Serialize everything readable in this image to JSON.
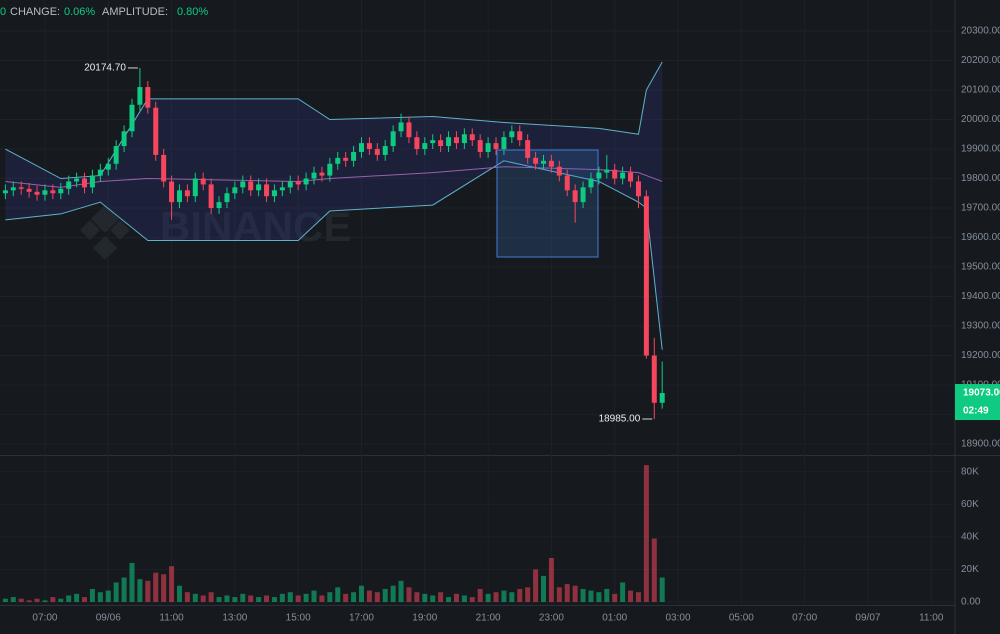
{
  "chart_data": {
    "type": "candlestick",
    "header": {
      "lead": "0",
      "change_label": "CHANGE:",
      "change": "0.06%",
      "amplitude_label": "AMPLITUDE:",
      "amplitude": "0.80%"
    },
    "watermark": "BINANCE",
    "colors": {
      "up": "#0ecb81",
      "down": "#f6465d"
    },
    "x": [
      5.75,
      6,
      6.25,
      6.5,
      6.75,
      7,
      7.25,
      7.5,
      7.75,
      8,
      8.25,
      8.5,
      8.75,
      9,
      9.25,
      9.5,
      9.75,
      10,
      10.25,
      10.5,
      10.75,
      11,
      11.25,
      11.5,
      11.75,
      12,
      12.25,
      12.5,
      12.75,
      13,
      13.25,
      13.5,
      13.75,
      14,
      14.25,
      14.5,
      14.75,
      15,
      15.25,
      15.5,
      15.75,
      16,
      16.25,
      16.5,
      16.75,
      17,
      17.25,
      17.5,
      17.75,
      18,
      18.25,
      18.5,
      18.75,
      19,
      19.25,
      19.5,
      19.75,
      20,
      20.25,
      20.5,
      20.75,
      21,
      21.25,
      21.5,
      21.75,
      22,
      22.25,
      22.5,
      22.75,
      23,
      23.25,
      23.5,
      23.75,
      24,
      24.25,
      24.5,
      24.75,
      25,
      25.25,
      25.5,
      25.75,
      26,
      26.25,
      26.5
    ],
    "open": [
      19750,
      19760,
      19770,
      19765,
      19755,
      19745,
      19760,
      19750,
      19765,
      19790,
      19800,
      19770,
      19810,
      19830,
      19850,
      19910,
      19960,
      20050,
      20110,
      20040,
      19880,
      19790,
      19720,
      19760,
      19740,
      19800,
      19780,
      19700,
      19720,
      19750,
      19770,
      19790,
      19760,
      19780,
      19740,
      19760,
      19770,
      19790,
      19780,
      19800,
      19820,
      19810,
      19850,
      19870,
      19860,
      19890,
      19920,
      19900,
      19880,
      19910,
      19960,
      19990,
      19940,
      19900,
      19920,
      19930,
      19910,
      19940,
      19920,
      19950,
      19930,
      19890,
      19920,
      19900,
      19940,
      19960,
      19930,
      19870,
      19850,
      19860,
      19840,
      19810,
      19760,
      19720,
      19770,
      19800,
      19820,
      19830,
      19800,
      19820,
      19790,
      19740,
      19200,
      19040
    ],
    "high": [
      19780,
      19790,
      19790,
      19785,
      19775,
      19780,
      19780,
      19785,
      19810,
      19820,
      19820,
      19830,
      19850,
      19870,
      19930,
      19980,
      20070,
      20174.7,
      20130,
      20060,
      19900,
      19810,
      19780,
      19780,
      19820,
      19820,
      19800,
      19740,
      19770,
      19790,
      19810,
      19810,
      19800,
      19800,
      19780,
      19790,
      19810,
      19810,
      19820,
      19840,
      19840,
      19870,
      19890,
      19890,
      19910,
      19940,
      19940,
      19920,
      19930,
      19980,
      20020,
      20010,
      19960,
      19940,
      19950,
      19950,
      19960,
      19960,
      19970,
      19970,
      19950,
      19940,
      19940,
      19960,
      19980,
      19980,
      19950,
      19890,
      19880,
      19880,
      19860,
      19830,
      19780,
      19790,
      19820,
      19840,
      19880,
      19850,
      19840,
      19840,
      19810,
      19760,
      19260,
      19180
    ],
    "low": [
      19730,
      19740,
      19745,
      19735,
      19725,
      19725,
      19730,
      19730,
      19745,
      19770,
      19750,
      19750,
      19790,
      19810,
      19830,
      19890,
      19940,
      20030,
      20020,
      19860,
      19770,
      19660,
      19700,
      19720,
      19720,
      19760,
      19680,
      19680,
      19700,
      19730,
      19750,
      19740,
      19740,
      19720,
      19720,
      19740,
      19750,
      19760,
      19760,
      19780,
      19790,
      19790,
      19830,
      19840,
      19840,
      19870,
      19880,
      19860,
      19860,
      19890,
      19940,
      19920,
      19880,
      19880,
      19900,
      19890,
      19890,
      19900,
      19900,
      19910,
      19870,
      19870,
      19880,
      19880,
      19920,
      19910,
      19850,
      19830,
      19830,
      19820,
      19790,
      19740,
      19650,
      19700,
      19750,
      19780,
      19800,
      19780,
      19780,
      19770,
      19700,
      19190,
      18985,
      19020
    ],
    "close": [
      19760,
      19770,
      19765,
      19755,
      19745,
      19760,
      19750,
      19765,
      19790,
      19800,
      19770,
      19810,
      19830,
      19850,
      19910,
      19960,
      20050,
      20110,
      20040,
      19880,
      19790,
      19720,
      19760,
      19740,
      19800,
      19780,
      19700,
      19720,
      19750,
      19770,
      19790,
      19760,
      19780,
      19740,
      19760,
      19770,
      19790,
      19780,
      19800,
      19820,
      19810,
      19850,
      19870,
      19860,
      19890,
      19920,
      19900,
      19880,
      19910,
      19960,
      19990,
      19940,
      19900,
      19920,
      19930,
      19910,
      19940,
      19920,
      19950,
      19930,
      19890,
      19920,
      19900,
      19940,
      19960,
      19930,
      19870,
      19850,
      19860,
      19840,
      19810,
      19760,
      19720,
      19770,
      19800,
      19820,
      19830,
      19800,
      19820,
      19790,
      19740,
      19200,
      19040,
      19073
    ],
    "xlim": [
      5.58,
      35.75
    ],
    "xticks": [
      {
        "value": 7,
        "label": "07:00"
      },
      {
        "value": 9,
        "label": "09/06"
      },
      {
        "value": 11,
        "label": "11:00"
      },
      {
        "value": 13,
        "label": "13:00"
      },
      {
        "value": 15,
        "label": "15:00"
      },
      {
        "value": 17,
        "label": "17:00"
      },
      {
        "value": 19,
        "label": "19:00"
      },
      {
        "value": 21,
        "label": "21:00"
      },
      {
        "value": 23,
        "label": "23:00"
      },
      {
        "value": 25,
        "label": "01:00"
      },
      {
        "value": 27,
        "label": "03:00"
      },
      {
        "value": 29,
        "label": "05:00"
      },
      {
        "value": 31,
        "label": "07:00"
      },
      {
        "value": 33,
        "label": "09/07"
      },
      {
        "value": 35,
        "label": "11:00"
      }
    ],
    "ylim": [
      18863,
      20405
    ],
    "yticks": [
      {
        "value": 18900,
        "label": "18900.00"
      },
      {
        "value": 19000,
        "label": "19000.00"
      },
      {
        "value": 19100,
        "label": "19100.00"
      },
      {
        "value": 19200,
        "label": "19200.00"
      },
      {
        "value": 19300,
        "label": "19300.00"
      },
      {
        "value": 19400,
        "label": "19400.00"
      },
      {
        "value": 19500,
        "label": "19500.00"
      },
      {
        "value": 19600,
        "label": "19600.00"
      },
      {
        "value": 19700,
        "label": "19700.00"
      },
      {
        "value": 19800,
        "label": "19800.00"
      },
      {
        "value": 19900,
        "label": "19900.00"
      },
      {
        "value": 20000,
        "label": "20000.00"
      },
      {
        "value": 20100,
        "label": "20100.00"
      },
      {
        "value": 20200,
        "label": "20200.00"
      },
      {
        "value": 20300,
        "label": "20300.00"
      }
    ],
    "bands": {
      "x": [
        5.75,
        7.5,
        8.75,
        10.25,
        15,
        16,
        19.25,
        21.5,
        24.5,
        25.75,
        26,
        26.5
      ],
      "upper": [
        19900,
        19800,
        19810,
        20070,
        20070,
        20000,
        20010,
        19990,
        19970,
        19950,
        20100,
        20195
      ],
      "lower": [
        19660,
        19680,
        19720,
        19590,
        19590,
        19690,
        19710,
        19860,
        19790,
        19720,
        19700,
        19220
      ],
      "middle": [
        19790,
        19770,
        19790,
        19800,
        19790,
        19800,
        19820,
        19840,
        19830,
        19820,
        19810,
        19790
      ],
      "color": "#5fb3c9",
      "middle_color": "#9b5fb0"
    },
    "annotations": [
      {
        "label": "20174.70",
        "value": 20174.7,
        "x": 10
      },
      {
        "label": "18985.00",
        "value": 18985,
        "x": 26.25
      }
    ],
    "current": {
      "value": 19073,
      "label": "19073.00",
      "countdown": "02:49"
    },
    "volume": {
      "values": [
        2000,
        3000,
        2000,
        1000,
        2000,
        1000,
        3000,
        2000,
        4000,
        5000,
        3000,
        8000,
        6000,
        7000,
        12000,
        15000,
        24000,
        14000,
        13000,
        18000,
        17000,
        22000,
        10000,
        6000,
        5000,
        4000,
        6000,
        3000,
        4000,
        3000,
        5000,
        4000,
        3000,
        4000,
        3000,
        5000,
        6000,
        4000,
        5000,
        7000,
        4000,
        6000,
        9000,
        5000,
        6000,
        10000,
        7000,
        6000,
        8000,
        10000,
        13000,
        9000,
        6000,
        5000,
        4000,
        6000,
        3000,
        5000,
        4000,
        3000,
        8000,
        5000,
        6000,
        7000,
        6000,
        8000,
        9000,
        20000,
        16000,
        27000,
        9000,
        11000,
        10000,
        8000,
        7000,
        6000,
        8000,
        5000,
        12000,
        7000,
        6000,
        84000,
        39000,
        15000
      ],
      "ylim": [
        0,
        89000
      ],
      "yticks": [
        {
          "value": 0,
          "label": "0.00"
        },
        {
          "value": 20000,
          "label": "20K"
        },
        {
          "value": 40000,
          "label": "40K"
        },
        {
          "value": 60000,
          "label": "60K"
        },
        {
          "value": 80000,
          "label": "80K"
        }
      ]
    }
  }
}
